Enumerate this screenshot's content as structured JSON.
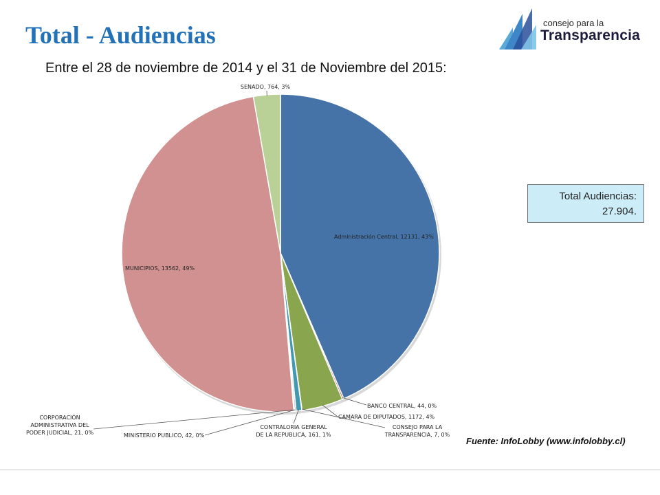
{
  "header": {
    "title": "Total - Audiencias",
    "subtitle": "Entre el 28 de noviembre de 2014 y el 31 de Noviembre del 2015:"
  },
  "logo": {
    "line1": "consejo para la",
    "line2": "Transparencia"
  },
  "total_box": {
    "line1": "Total Audiencias:",
    "line2": "27.904."
  },
  "source": "Fuente: InfoLobby  (www.infolobby.cl)",
  "colors": {
    "title": "#2372b8",
    "administracion": "#4572a7",
    "banco": "#aa4643",
    "camara": "#89a54e",
    "consejo": "#71588f",
    "contraloria": "#4198af",
    "ministerio": "#86b3d8",
    "corporacion": "#db843d",
    "municipios": "#d09190",
    "senado": "#b9d197",
    "box_bg": "#ccecf8"
  },
  "chart_data": {
    "type": "pie",
    "title": "",
    "slices": [
      {
        "name": "Administración Central",
        "value": 12131,
        "percent": "43%",
        "label": "Administración Central, 12131, 43%",
        "color": "#4572a7"
      },
      {
        "name": "BANCO CENTRAL",
        "value": 44,
        "percent": "0%",
        "label": "BANCO CENTRAL,  44, 0%",
        "color": "#aa4643"
      },
      {
        "name": "CAMARA DE DIPUTADOS",
        "value": 1172,
        "percent": "4%",
        "label": "CAMARA DE DIPUTADOS, 1172, 4%",
        "color": "#89a54e"
      },
      {
        "name": "CONSEJO PARA LA TRANSPARENCIA",
        "value": 7,
        "percent": "0%",
        "label_lines": [
          "CONSEJO PARA LA",
          "TRANSPARENCIA,  7, 0%"
        ],
        "color": "#71588f"
      },
      {
        "name": "CONTRALORIA GENERAL DE LA REPUBLICA",
        "value": 161,
        "percent": "1%",
        "label_lines": [
          "CONTRALORIA GENERAL",
          "DE LA REPUBLICA, 161, 1%"
        ],
        "color": "#4198af"
      },
      {
        "name": "MINISTERIO PUBLICO",
        "value": 42,
        "percent": "0%",
        "label": "MINISTERIO PUBLICO, 42, 0%",
        "color": "#86b3d8"
      },
      {
        "name": "CORPORACIÓN ADMINISTRATIVA DEL PODER JUDICIAL",
        "value": 21,
        "percent": "0%",
        "label_lines": [
          "CORPORACIÓN",
          "ADMINISTRATIVA DEL",
          "PODER JUDICIAL, 21, 0%"
        ],
        "color": "#db843d"
      },
      {
        "name": "MUNICIPIOS",
        "value": 13562,
        "percent": "49%",
        "label": "MUNICIPIOS, 13562, 49%",
        "color": "#d09190"
      },
      {
        "name": "SENADO",
        "value": 764,
        "percent": "3%",
        "label": "SENADO, 764, 3%",
        "color": "#b9d197"
      }
    ],
    "legend": "none"
  }
}
